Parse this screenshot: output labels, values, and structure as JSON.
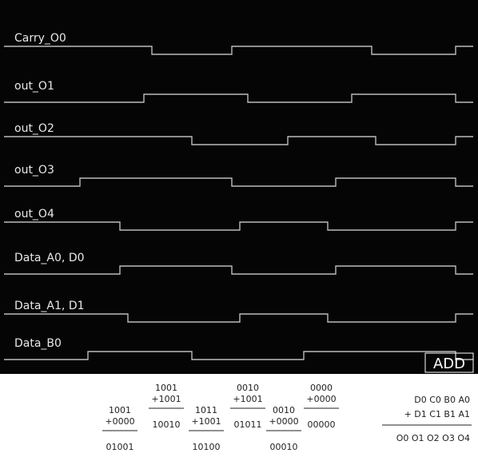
{
  "channels": [
    "Carry_O0",
    "out_O1",
    "out_O2",
    "out_O3",
    "out_O4",
    "Data_A0, D0",
    "Data_A1, D1",
    "Data_B0"
  ],
  "mode": "ADD",
  "sums": [
    {
      "a": "1001",
      "b": "+0000",
      "result": "01001"
    },
    {
      "a": "1001",
      "b": "+1001",
      "result": "10010"
    },
    {
      "a": "1011",
      "b": "+1001",
      "result": "10100"
    },
    {
      "a": "0010",
      "b": "+1001",
      "result": "01011"
    },
    {
      "a": "0010",
      "b": "+0000",
      "result": "00010"
    },
    {
      "a": "0000",
      "b": "+0000",
      "result": "00000"
    }
  ],
  "legend": {
    "top": "D0 C0 B0 A0",
    "bottom": "+ D1 C1 B1 A1",
    "result": "O0 O1 O2 O3 O4"
  }
}
